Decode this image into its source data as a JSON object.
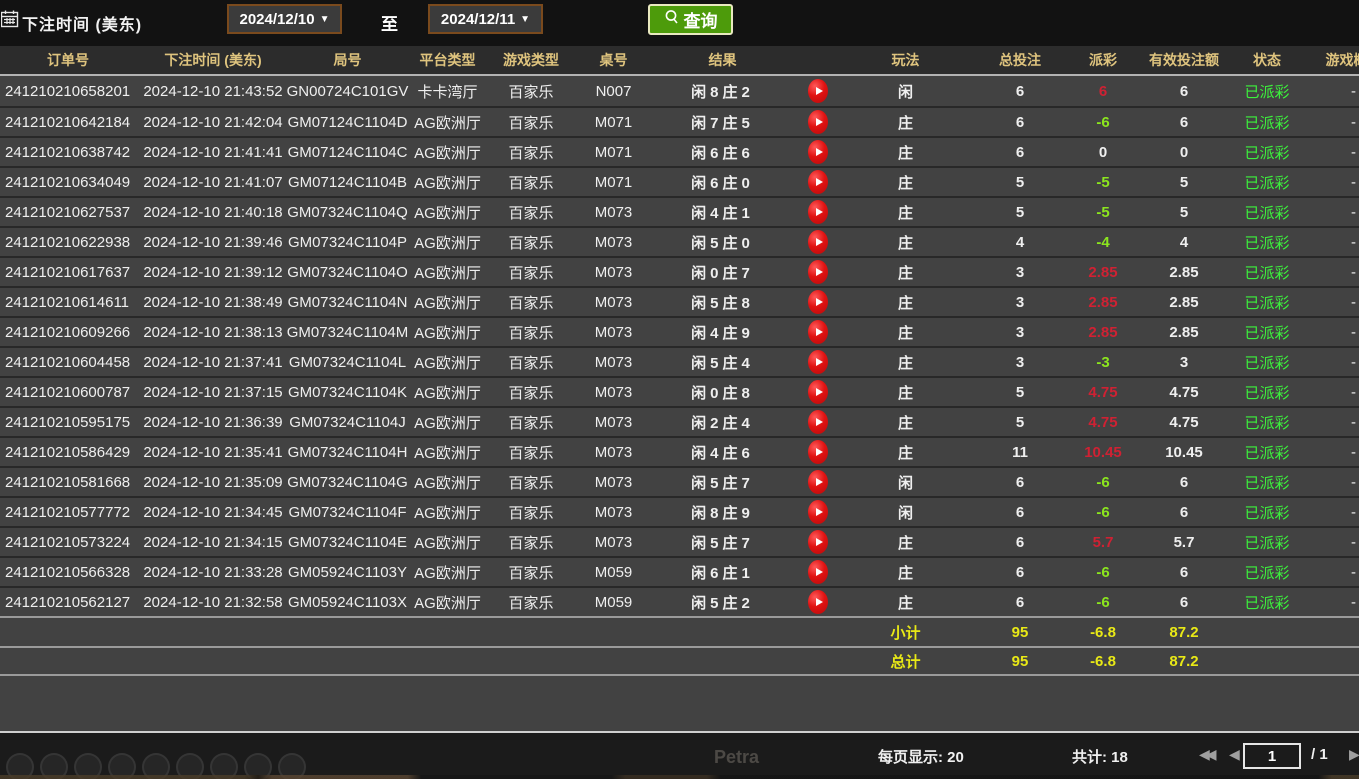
{
  "filter_bar": {
    "label": "下注时间 (美东)",
    "date_from": "2024/12/10",
    "to_label": "至",
    "date_to": "2024/12/11",
    "search_label": "查询"
  },
  "table": {
    "columns": [
      "订单号",
      "下注时间 (美东)",
      "局号",
      "平台类型",
      "游戏类型",
      "桌号",
      "结果",
      "",
      "玩法",
      "总投注",
      "派彩",
      "有效投注额",
      "状态",
      "游戏概况"
    ],
    "rows": [
      {
        "order": "241210210658201",
        "time": "2024-12-10 21:43:52",
        "round": "GN00724C101GV",
        "platform": "卡卡湾厅",
        "game": "百家乐",
        "table_no": "N007",
        "result": "闲8庄2",
        "play": "闲",
        "total": "6",
        "payout": "6",
        "payout_tone": "win",
        "valid": "6",
        "status": "已派彩",
        "more": "-"
      },
      {
        "order": "241210210642184",
        "time": "2024-12-10 21:42:04",
        "round": "GM07124C1104D",
        "platform": "AG欧洲厅",
        "game": "百家乐",
        "table_no": "M071",
        "result": "闲7庄5",
        "play": "庄",
        "total": "6",
        "payout": "-6",
        "payout_tone": "loss",
        "valid": "6",
        "status": "已派彩",
        "more": "-"
      },
      {
        "order": "241210210638742",
        "time": "2024-12-10 21:41:41",
        "round": "GM07124C1104C",
        "platform": "AG欧洲厅",
        "game": "百家乐",
        "table_no": "M071",
        "result": "闲6庄6",
        "play": "庄",
        "total": "6",
        "payout": "0",
        "payout_tone": "even",
        "valid": "0",
        "status": "已派彩",
        "more": "-"
      },
      {
        "order": "241210210634049",
        "time": "2024-12-10 21:41:07",
        "round": "GM07124C1104B",
        "platform": "AG欧洲厅",
        "game": "百家乐",
        "table_no": "M071",
        "result": "闲6庄0",
        "play": "庄",
        "total": "5",
        "payout": "-5",
        "payout_tone": "loss",
        "valid": "5",
        "status": "已派彩",
        "more": "-"
      },
      {
        "order": "241210210627537",
        "time": "2024-12-10 21:40:18",
        "round": "GM07324C1104Q",
        "platform": "AG欧洲厅",
        "game": "百家乐",
        "table_no": "M073",
        "result": "闲4庄1",
        "play": "庄",
        "total": "5",
        "payout": "-5",
        "payout_tone": "loss",
        "valid": "5",
        "status": "已派彩",
        "more": "-"
      },
      {
        "order": "241210210622938",
        "time": "2024-12-10 21:39:46",
        "round": "GM07324C1104P",
        "platform": "AG欧洲厅",
        "game": "百家乐",
        "table_no": "M073",
        "result": "闲5庄0",
        "play": "庄",
        "total": "4",
        "payout": "-4",
        "payout_tone": "loss",
        "valid": "4",
        "status": "已派彩",
        "more": "-"
      },
      {
        "order": "241210210617637",
        "time": "2024-12-10 21:39:12",
        "round": "GM07324C1104O",
        "platform": "AG欧洲厅",
        "game": "百家乐",
        "table_no": "M073",
        "result": "闲0庄7",
        "play": "庄",
        "total": "3",
        "payout": "2.85",
        "payout_tone": "win",
        "valid": "2.85",
        "status": "已派彩",
        "more": "-"
      },
      {
        "order": "241210210614611",
        "time": "2024-12-10 21:38:49",
        "round": "GM07324C1104N",
        "platform": "AG欧洲厅",
        "game": "百家乐",
        "table_no": "M073",
        "result": "闲5庄8",
        "play": "庄",
        "total": "3",
        "payout": "2.85",
        "payout_tone": "win",
        "valid": "2.85",
        "status": "已派彩",
        "more": "-"
      },
      {
        "order": "241210210609266",
        "time": "2024-12-10 21:38:13",
        "round": "GM07324C1104M",
        "platform": "AG欧洲厅",
        "game": "百家乐",
        "table_no": "M073",
        "result": "闲4庄9",
        "play": "庄",
        "total": "3",
        "payout": "2.85",
        "payout_tone": "win",
        "valid": "2.85",
        "status": "已派彩",
        "more": "-"
      },
      {
        "order": "241210210604458",
        "time": "2024-12-10 21:37:41",
        "round": "GM07324C1104L",
        "platform": "AG欧洲厅",
        "game": "百家乐",
        "table_no": "M073",
        "result": "闲5庄4",
        "play": "庄",
        "total": "3",
        "payout": "-3",
        "payout_tone": "loss",
        "valid": "3",
        "status": "已派彩",
        "more": "-"
      },
      {
        "order": "241210210600787",
        "time": "2024-12-10 21:37:15",
        "round": "GM07324C1104K",
        "platform": "AG欧洲厅",
        "game": "百家乐",
        "table_no": "M073",
        "result": "闲0庄8",
        "play": "庄",
        "total": "5",
        "payout": "4.75",
        "payout_tone": "win",
        "valid": "4.75",
        "status": "已派彩",
        "more": "-"
      },
      {
        "order": "241210210595175",
        "time": "2024-12-10 21:36:39",
        "round": "GM07324C1104J",
        "platform": "AG欧洲厅",
        "game": "百家乐",
        "table_no": "M073",
        "result": "闲2庄4",
        "play": "庄",
        "total": "5",
        "payout": "4.75",
        "payout_tone": "win",
        "valid": "4.75",
        "status": "已派彩",
        "more": "-"
      },
      {
        "order": "241210210586429",
        "time": "2024-12-10 21:35:41",
        "round": "GM07324C1104H",
        "platform": "AG欧洲厅",
        "game": "百家乐",
        "table_no": "M073",
        "result": "闲4庄6",
        "play": "庄",
        "total": "11",
        "payout": "10.45",
        "payout_tone": "win",
        "valid": "10.45",
        "status": "已派彩",
        "more": "-"
      },
      {
        "order": "241210210581668",
        "time": "2024-12-10 21:35:09",
        "round": "GM07324C1104G",
        "platform": "AG欧洲厅",
        "game": "百家乐",
        "table_no": "M073",
        "result": "闲5庄7",
        "play": "闲",
        "total": "6",
        "payout": "-6",
        "payout_tone": "loss",
        "valid": "6",
        "status": "已派彩",
        "more": "-"
      },
      {
        "order": "241210210577772",
        "time": "2024-12-10 21:34:45",
        "round": "GM07324C1104F",
        "platform": "AG欧洲厅",
        "game": "百家乐",
        "table_no": "M073",
        "result": "闲8庄9",
        "play": "闲",
        "total": "6",
        "payout": "-6",
        "payout_tone": "loss",
        "valid": "6",
        "status": "已派彩",
        "more": "-"
      },
      {
        "order": "241210210573224",
        "time": "2024-12-10 21:34:15",
        "round": "GM07324C1104E",
        "platform": "AG欧洲厅",
        "game": "百家乐",
        "table_no": "M073",
        "result": "闲5庄7",
        "play": "庄",
        "total": "6",
        "payout": "5.7",
        "payout_tone": "win",
        "valid": "5.7",
        "status": "已派彩",
        "more": "-"
      },
      {
        "order": "241210210566328",
        "time": "2024-12-10 21:33:28",
        "round": "GM05924C1103Y",
        "platform": "AG欧洲厅",
        "game": "百家乐",
        "table_no": "M059",
        "result": "闲6庄1",
        "play": "庄",
        "total": "6",
        "payout": "-6",
        "payout_tone": "loss",
        "valid": "6",
        "status": "已派彩",
        "more": "-"
      },
      {
        "order": "241210210562127",
        "time": "2024-12-10 21:32:58",
        "round": "GM05924C1103X",
        "platform": "AG欧洲厅",
        "game": "百家乐",
        "table_no": "M059",
        "result": "闲5庄2",
        "play": "庄",
        "total": "6",
        "payout": "-6",
        "payout_tone": "loss",
        "valid": "6",
        "status": "已派彩",
        "more": "-"
      }
    ],
    "subtotal": {
      "label": "小计",
      "total": "95",
      "payout": "-6.8",
      "valid": "87.2"
    },
    "grandtotal": {
      "label": "总计",
      "total": "95",
      "payout": "-6.8",
      "valid": "87.2"
    }
  },
  "pagination": {
    "per_page_label": "每页显示: 20",
    "total_label": "共计: 18",
    "page": "1",
    "page_of": "/  1",
    "ghost_text": "Petra"
  }
}
